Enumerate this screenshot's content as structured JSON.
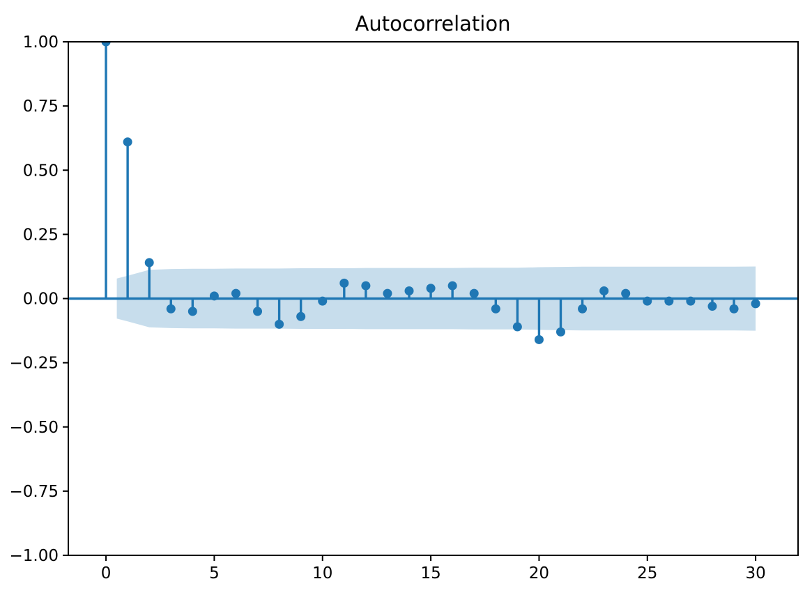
{
  "chart_data": {
    "type": "stem",
    "title": "Autocorrelation",
    "xlabel": "",
    "ylabel": "",
    "x": [
      0,
      1,
      2,
      3,
      4,
      5,
      6,
      7,
      8,
      9,
      10,
      11,
      12,
      13,
      14,
      15,
      16,
      17,
      18,
      19,
      20,
      21,
      22,
      23,
      24,
      25,
      26,
      27,
      28,
      29,
      30
    ],
    "values": [
      1.0,
      0.61,
      0.14,
      -0.04,
      -0.05,
      0.01,
      0.02,
      -0.05,
      -0.1,
      -0.07,
      -0.01,
      0.06,
      0.05,
      0.02,
      0.03,
      0.04,
      0.05,
      0.02,
      -0.04,
      -0.11,
      -0.16,
      -0.13,
      -0.04,
      0.03,
      0.02,
      -0.01,
      -0.01,
      -0.01,
      -0.03,
      -0.04,
      -0.02
    ],
    "confidence_band": {
      "x": [
        0.5,
        1,
        2,
        3,
        4,
        5,
        6,
        7,
        8,
        9,
        10,
        11,
        12,
        13,
        14,
        15,
        16,
        17,
        18,
        19,
        20,
        21,
        22,
        23,
        24,
        25,
        26,
        27,
        28,
        29,
        30
      ],
      "halfwidth": [
        0.078,
        0.089,
        0.112,
        0.115,
        0.116,
        0.116,
        0.117,
        0.117,
        0.117,
        0.118,
        0.118,
        0.118,
        0.119,
        0.119,
        0.119,
        0.119,
        0.119,
        0.12,
        0.12,
        0.12,
        0.122,
        0.123,
        0.124,
        0.124,
        0.124,
        0.124,
        0.124,
        0.124,
        0.124,
        0.124,
        0.125
      ],
      "centered_on": 0
    },
    "xticks": [
      {
        "label": "0",
        "value": 0
      },
      {
        "label": "5",
        "value": 5
      },
      {
        "label": "10",
        "value": 10
      },
      {
        "label": "15",
        "value": 15
      },
      {
        "label": "20",
        "value": 20
      },
      {
        "label": "25",
        "value": 25
      },
      {
        "label": "30",
        "value": 30
      }
    ],
    "yticks": [
      {
        "label": "1.00",
        "value": 1.0
      },
      {
        "label": "0.75",
        "value": 0.75
      },
      {
        "label": "0.50",
        "value": 0.5
      },
      {
        "label": "0.25",
        "value": 0.25
      },
      {
        "label": "0.00",
        "value": 0.0
      },
      {
        "label": "−0.25",
        "value": -0.25
      },
      {
        "label": "−0.50",
        "value": -0.5
      },
      {
        "label": "−0.75",
        "value": -0.75
      },
      {
        "label": "−1.00",
        "value": -1.0
      }
    ],
    "xlim": [
      -1.74,
      31.96
    ],
    "ylim": [
      -1.0,
      1.0
    ],
    "grid": false,
    "legend": "none",
    "colors": {
      "stem": "#1f77b4",
      "marker": "#1f77b4",
      "zero_line": "#1f77b4",
      "band_fill": "rgba(31,119,180,0.25)",
      "axis": "#000000",
      "background": "#ffffff"
    }
  }
}
